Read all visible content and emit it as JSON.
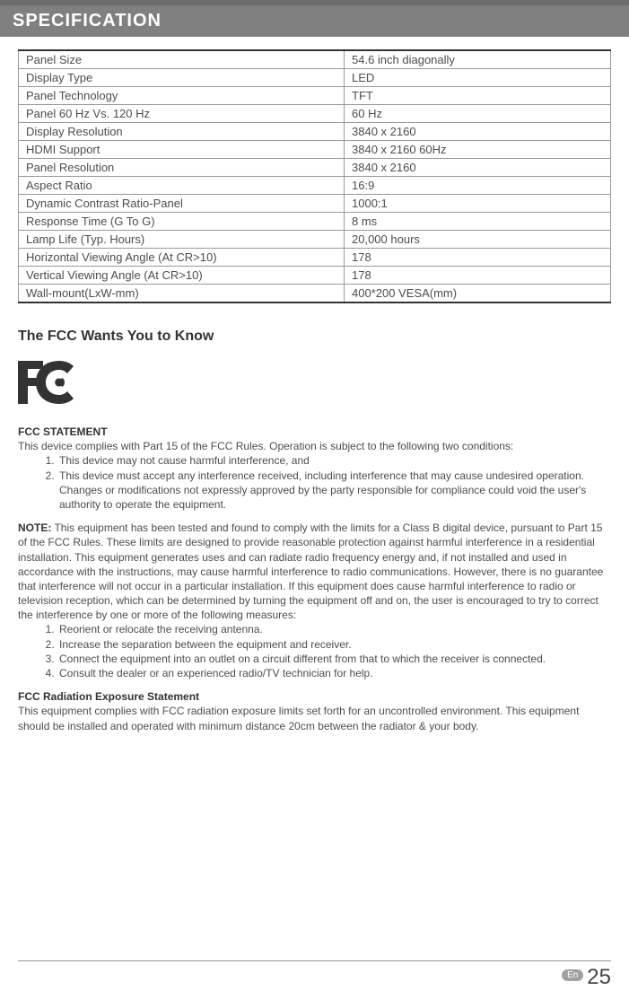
{
  "header": {
    "title": "SPECIFICATION"
  },
  "spec_table": {
    "rows": [
      {
        "label": "Panel Size",
        "value": "54.6 inch diagonally"
      },
      {
        "label": "Display Type",
        "value": "LED"
      },
      {
        "label": "Panel Technology",
        "value": "TFT"
      },
      {
        "label": "Panel 60 Hz Vs. 120 Hz",
        "value": "60 Hz"
      },
      {
        "label": "Display Resolution",
        "value": "3840 x 2160"
      },
      {
        "label": "HDMI Support",
        "value": "3840 x 2160 60Hz"
      },
      {
        "label": "Panel Resolution",
        "value": "3840 x 2160"
      },
      {
        "label": "Aspect Ratio",
        "value": "16:9"
      },
      {
        "label": "Dynamic Contrast Ratio-Panel",
        "value": "1000:1"
      },
      {
        "label": "Response Time (G To G)",
        "value": "8 ms"
      },
      {
        "label": "Lamp Life (Typ. Hours)",
        "value": "20,000 hours"
      },
      {
        "label": "Horizontal Viewing Angle (At CR>10)",
        "value": "178"
      },
      {
        "label": "Vertical Viewing Angle (At CR>10)",
        "value": "178"
      },
      {
        "label": "Wall-mount(LxW-mm)",
        "value": "400*200 VESA(mm)"
      }
    ]
  },
  "fcc": {
    "section_title": "The FCC Wants You to Know",
    "statement_heading": "FCC STATEMENT",
    "intro": "This device complies with Part 15 of the FCC Rules. Operation is subject to the following two conditions:",
    "conditions": [
      "This device may not cause harmful interference, and",
      "This device must accept any interference received, including interference that may cause undesired operation. Changes or modifications not expressly approved by the party responsible for compliance could void the user's authority to operate the equipment."
    ],
    "note_label": "NOTE:",
    "note_body": " This equipment has been tested and found to comply with the limits for a Class B digital device, pursuant to Part 15 of the FCC Rules. These limits are designed to provide reasonable protection against harmful interference in a residential installation. This equipment generates uses and can radiate radio frequency energy and, if not installed and used in accordance with the instructions, may cause harmful interference to radio communications. However, there is no guarantee that interference will not occur in a particular installation. If this equipment does cause harmful interference to radio or television reception, which can be determined by turning the equipment off and on, the user is encouraged to try to correct the interference by one or more of the following measures:",
    "measures": [
      "Reorient or relocate the receiving antenna.",
      "Increase the separation between the equipment and receiver.",
      "Connect the equipment into an outlet on a circuit different from that to which the receiver is connected.",
      "Consult the dealer or an experienced radio/TV technician for help."
    ],
    "radiation_heading": "FCC Radiation Exposure Statement",
    "radiation_body": "This equipment complies with FCC radiation exposure limits set forth for an uncontrolled environment. This equipment should be installed and operated with minimum distance 20cm between the radiator & your body."
  },
  "footer": {
    "lang": "En",
    "page": "25"
  }
}
